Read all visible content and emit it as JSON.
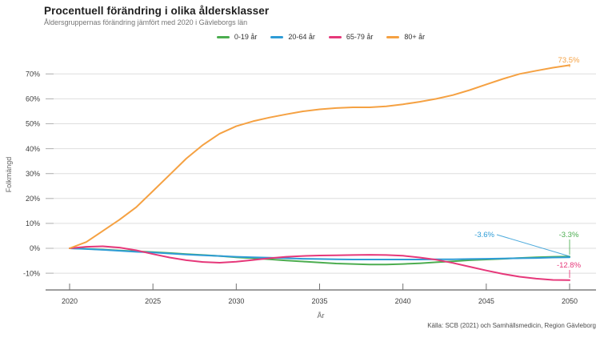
{
  "source": "Källa: SCB (2021) och Samhällsmedicin, Region Gävleborg",
  "chart_data": {
    "type": "line",
    "title": "Procentuell förändring i olika åldersklasser",
    "subtitle": "Åldersgruppernas förändring jämfört med 2020 i Gävleborgs län",
    "xlabel": "År",
    "ylabel": "Folkmängd",
    "grid": true,
    "legend_position": "top-center",
    "x_start": 2020,
    "x_end": 2050,
    "x_step": 1,
    "xlim": [
      2018.5,
      2051.5
    ],
    "ylim": [
      -16.5,
      75.5
    ],
    "x_ticks": [
      2020,
      2025,
      2030,
      2035,
      2040,
      2045,
      2050
    ],
    "y_ticks": [
      {
        "value": 70,
        "label": "70%"
      },
      {
        "value": 60,
        "label": "60%"
      },
      {
        "value": 50,
        "label": "50%"
      },
      {
        "value": 40,
        "label": "40%"
      },
      {
        "value": 30,
        "label": "30%"
      },
      {
        "value": 20,
        "label": "20%"
      },
      {
        "value": 10,
        "label": "10%"
      },
      {
        "value": 0,
        "label": "0%"
      },
      {
        "value": -10,
        "label": "-10%"
      }
    ],
    "series": [
      {
        "id": "0-19",
        "name": "0-19 år",
        "color": "#4cad50",
        "end_label": "-3.3%",
        "values": [
          0,
          -0.2,
          -0.5,
          -0.9,
          -1.2,
          -1.5,
          -1.9,
          -2.3,
          -2.7,
          -3.1,
          -3.6,
          -4.0,
          -4.4,
          -4.9,
          -5.3,
          -5.7,
          -6.1,
          -6.3,
          -6.5,
          -6.5,
          -6.3,
          -6.0,
          -5.6,
          -5.2,
          -4.8,
          -4.5,
          -4.2,
          -3.9,
          -3.6,
          -3.4,
          -3.3
        ]
      },
      {
        "id": "20-64",
        "name": "20-64 år",
        "color": "#2e9cd6",
        "end_label": "-3.6%",
        "values": [
          0,
          -0.3,
          -0.6,
          -1.0,
          -1.4,
          -1.7,
          -2.1,
          -2.5,
          -2.8,
          -3.1,
          -3.4,
          -3.6,
          -3.8,
          -4.0,
          -4.2,
          -4.3,
          -4.4,
          -4.5,
          -4.5,
          -4.5,
          -4.5,
          -4.5,
          -4.4,
          -4.4,
          -4.3,
          -4.2,
          -4.1,
          -4.0,
          -3.9,
          -3.7,
          -3.6
        ]
      },
      {
        "id": "65-79",
        "name": "65-79 år",
        "color": "#e6387a",
        "end_label": "-12.8%",
        "values": [
          0,
          0.6,
          0.8,
          0.3,
          -0.8,
          -2.3,
          -3.7,
          -4.8,
          -5.5,
          -5.8,
          -5.4,
          -4.7,
          -4.0,
          -3.4,
          -3.1,
          -2.9,
          -2.8,
          -2.7,
          -2.6,
          -2.7,
          -3.0,
          -3.7,
          -4.6,
          -5.9,
          -7.4,
          -8.9,
          -10.3,
          -11.4,
          -12.2,
          -12.7,
          -12.8
        ]
      },
      {
        "id": "80plus",
        "name": "80+ år",
        "color": "#f5a142",
        "end_label": "73.5%",
        "values": [
          0,
          2.5,
          7,
          11.5,
          16.5,
          23,
          29.5,
          36,
          41.5,
          46,
          49,
          51,
          52.5,
          53.8,
          55,
          55.8,
          56.3,
          56.6,
          56.6,
          57,
          57.8,
          58.8,
          60,
          61.5,
          63.5,
          65.8,
          68,
          70,
          71.3,
          72.5,
          73.5
        ]
      }
    ]
  }
}
